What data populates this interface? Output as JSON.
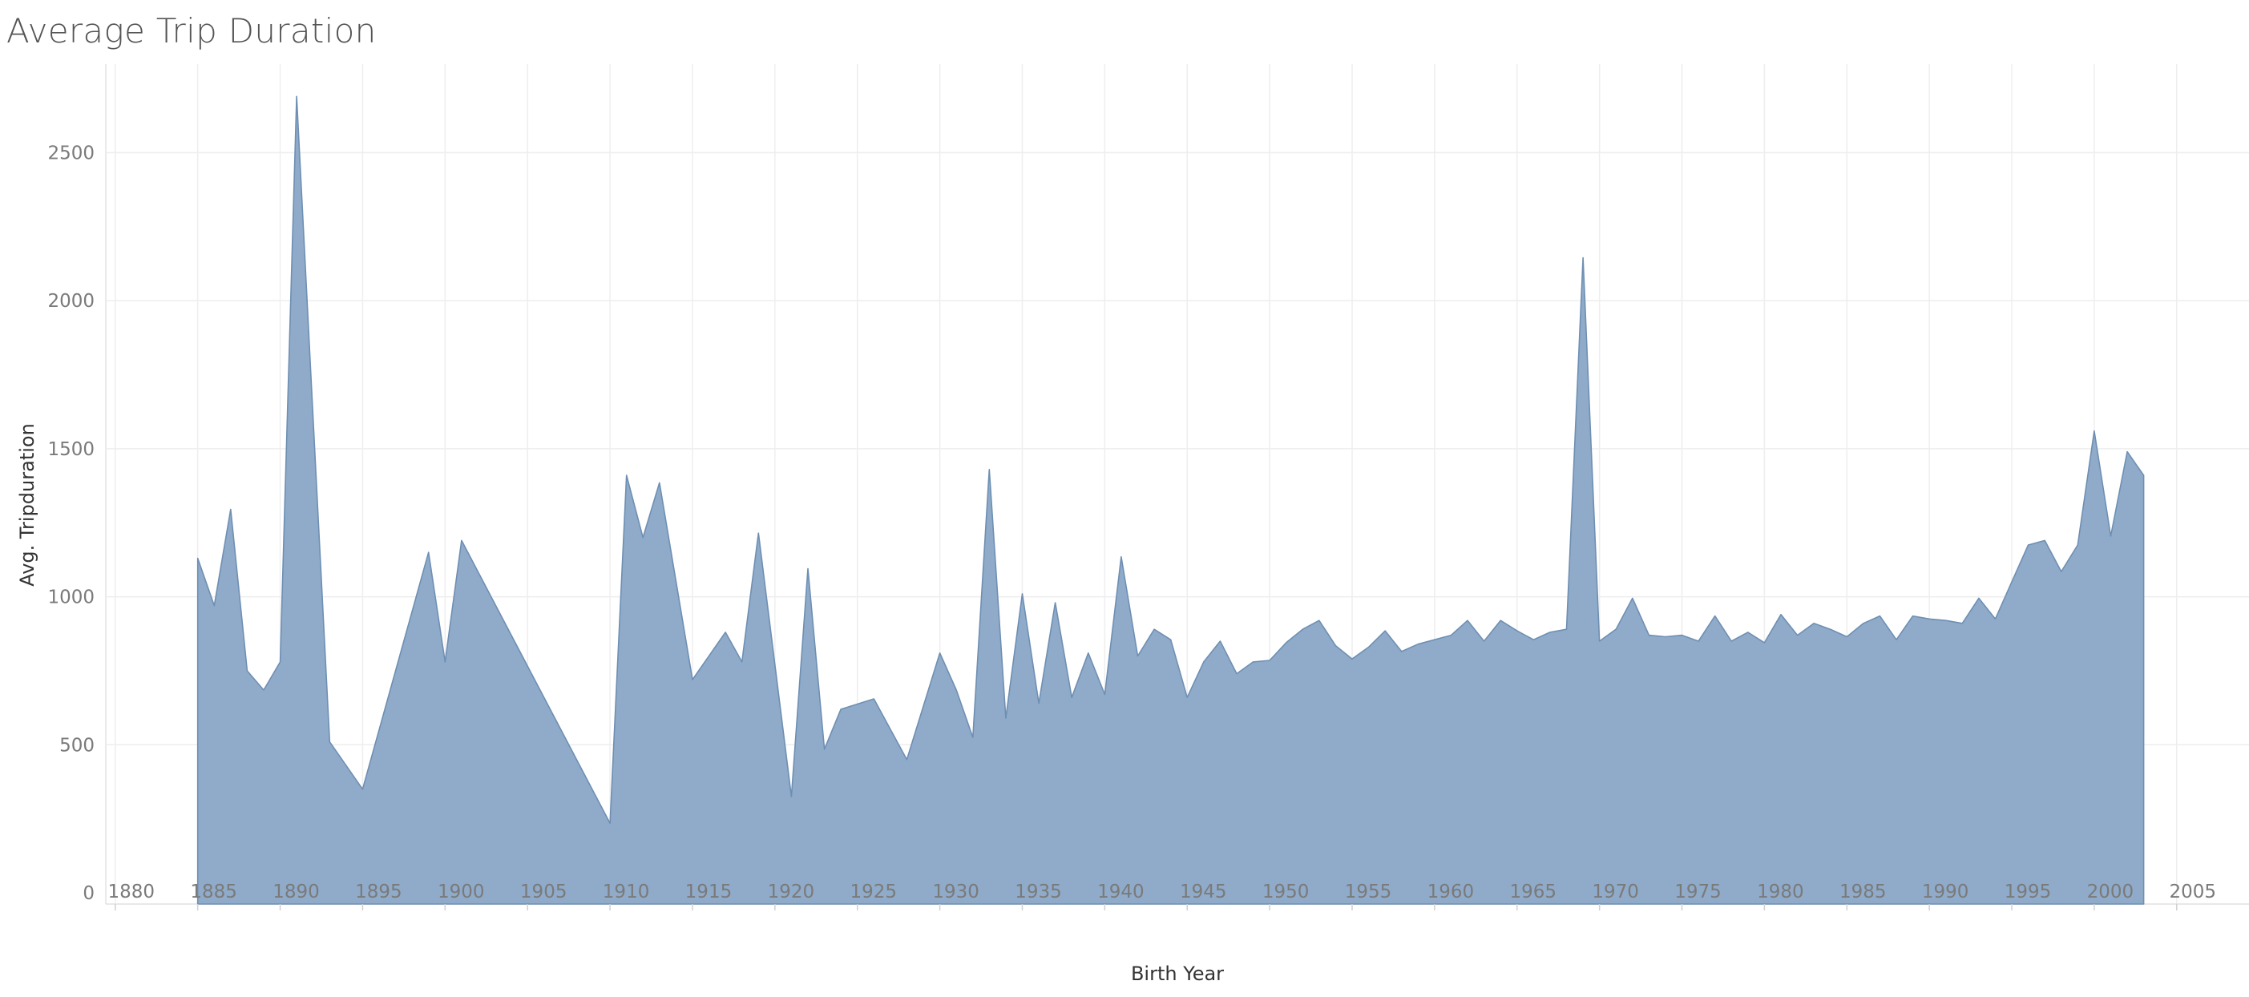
{
  "title": "Average Trip Duration",
  "colors": {
    "area_fill": "#8fabc9",
    "area_stroke": "#6e8fb3",
    "grid": "#eeeeee",
    "tick_text": "#7a7a7a",
    "axis_text": "#333333"
  },
  "chart_data": {
    "type": "area",
    "title": "Average Trip Duration",
    "xlabel": "Birth Year",
    "ylabel": "Avg. Tripduration",
    "xlim": [
      1878,
      2008
    ],
    "ylim": [
      -40,
      2830
    ],
    "xticks": [
      1880,
      1885,
      1890,
      1895,
      1900,
      1905,
      1910,
      1915,
      1920,
      1925,
      1930,
      1935,
      1940,
      1945,
      1950,
      1955,
      1960,
      1965,
      1970,
      1975,
      1980,
      1985,
      1990,
      1995,
      2000,
      2005
    ],
    "yticks": [
      0,
      500,
      1000,
      1500,
      2000,
      2500
    ],
    "grid": true,
    "legend": "none",
    "series": [
      {
        "x": [
          1885,
          1886,
          1887,
          1888,
          1889,
          1890,
          1891,
          1893,
          1895,
          1899,
          1900,
          1901,
          1910,
          1911,
          1912,
          1913,
          1915,
          1917,
          1918,
          1919,
          1921,
          1922,
          1923,
          1924,
          1926,
          1928,
          1930,
          1931,
          1932,
          1933,
          1934,
          1935,
          1936,
          1937,
          1938,
          1939,
          1940,
          1941,
          1942,
          1943,
          1944,
          1945,
          1946,
          1947,
          1948,
          1949,
          1950,
          1951,
          1952,
          1953,
          1954,
          1955,
          1956,
          1957,
          1958,
          1959,
          1960,
          1961,
          1962,
          1963,
          1964,
          1965,
          1966,
          1967,
          1968,
          1969,
          1970,
          1971,
          1972,
          1973,
          1974,
          1975,
          1976,
          1977,
          1978,
          1979,
          1980,
          1981,
          1982,
          1983,
          1984,
          1985,
          1986,
          1987,
          1988,
          1989,
          1990,
          1991,
          1992,
          1993,
          1994,
          1995,
          1996,
          1997,
          1998,
          1999,
          2000,
          2001,
          2002,
          2003
        ],
        "values": [
          1130,
          970,
          1295,
          750,
          685,
          780,
          2690,
          510,
          350,
          1150,
          780,
          1190,
          235,
          1410,
          1200,
          1385,
          720,
          880,
          780,
          1215,
          325,
          1095,
          485,
          620,
          655,
          450,
          810,
          685,
          525,
          1430,
          590,
          1010,
          640,
          980,
          660,
          810,
          670,
          1135,
          800,
          890,
          855,
          660,
          780,
          850,
          740,
          780,
          785,
          845,
          890,
          920,
          835,
          790,
          830,
          885,
          815,
          840,
          855,
          870,
          920,
          850,
          920,
          885,
          855,
          880,
          890,
          2145,
          850,
          890,
          995,
          870,
          865,
          870,
          850,
          935,
          850,
          880,
          845,
          940,
          870,
          910,
          890,
          865,
          910,
          935,
          855,
          935,
          925,
          920,
          910,
          995,
          925,
          1050,
          1175,
          1190,
          1085,
          1175,
          1560,
          1205,
          1490,
          1410
        ]
      }
    ]
  }
}
